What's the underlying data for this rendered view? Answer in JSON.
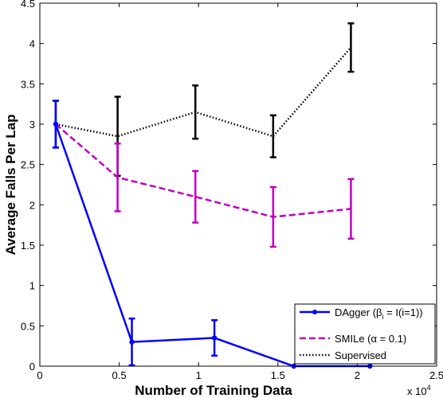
{
  "chart_data": {
    "type": "line",
    "xlabel": "Number of Training Data",
    "ylabel": "Average Falls Per Lap",
    "x_multiplier_label": "x 10",
    "x_multiplier_exp": "4",
    "xlim": [
      0,
      2.5
    ],
    "ylim": [
      0,
      4.5
    ],
    "x_ticks": [
      "0",
      "0.5",
      "1",
      "1.5",
      "2",
      "2.5"
    ],
    "y_ticks": [
      "0",
      "0.5",
      "1",
      "1.5",
      "2",
      "2.5",
      "3",
      "3.5",
      "4",
      "4.5"
    ],
    "legend_position": "bottom-right",
    "series": [
      {
        "name": "DAgger (β_i = I(i=1))",
        "legend_main": "DAgger (",
        "legend_beta": "β",
        "legend_sub": "i",
        "legend_rest": " = I(i=1))",
        "color": "#0000ff",
        "style": "solid",
        "marker": "dot",
        "x": [
          0.1,
          0.58,
          1.1,
          1.6,
          2.08
        ],
        "y": [
          3.0,
          0.3,
          0.35,
          0.0,
          0.0
        ],
        "err": [
          0.29,
          0.29,
          0.22,
          null,
          null
        ]
      },
      {
        "name": "SMILe (α = 0.1)",
        "legend_main": "SMILe (",
        "legend_alpha": "α",
        "legend_rest": " = 0.1)",
        "color": "#bf00bf",
        "style": "dashed",
        "marker": "none",
        "x": [
          0.1,
          0.49,
          0.98,
          1.47,
          1.96
        ],
        "y": [
          3.0,
          2.34,
          2.1,
          1.85,
          1.95
        ],
        "err": [
          null,
          0.42,
          0.32,
          0.37,
          0.37
        ]
      },
      {
        "name": "Supervised",
        "color": "#000000",
        "style": "dotted",
        "marker": "none",
        "x": [
          0.1,
          0.49,
          0.98,
          1.47,
          1.96
        ],
        "y": [
          3.0,
          2.85,
          3.15,
          2.85,
          3.95
        ],
        "err": [
          0.29,
          0.49,
          0.33,
          0.26,
          0.3
        ]
      }
    ]
  }
}
